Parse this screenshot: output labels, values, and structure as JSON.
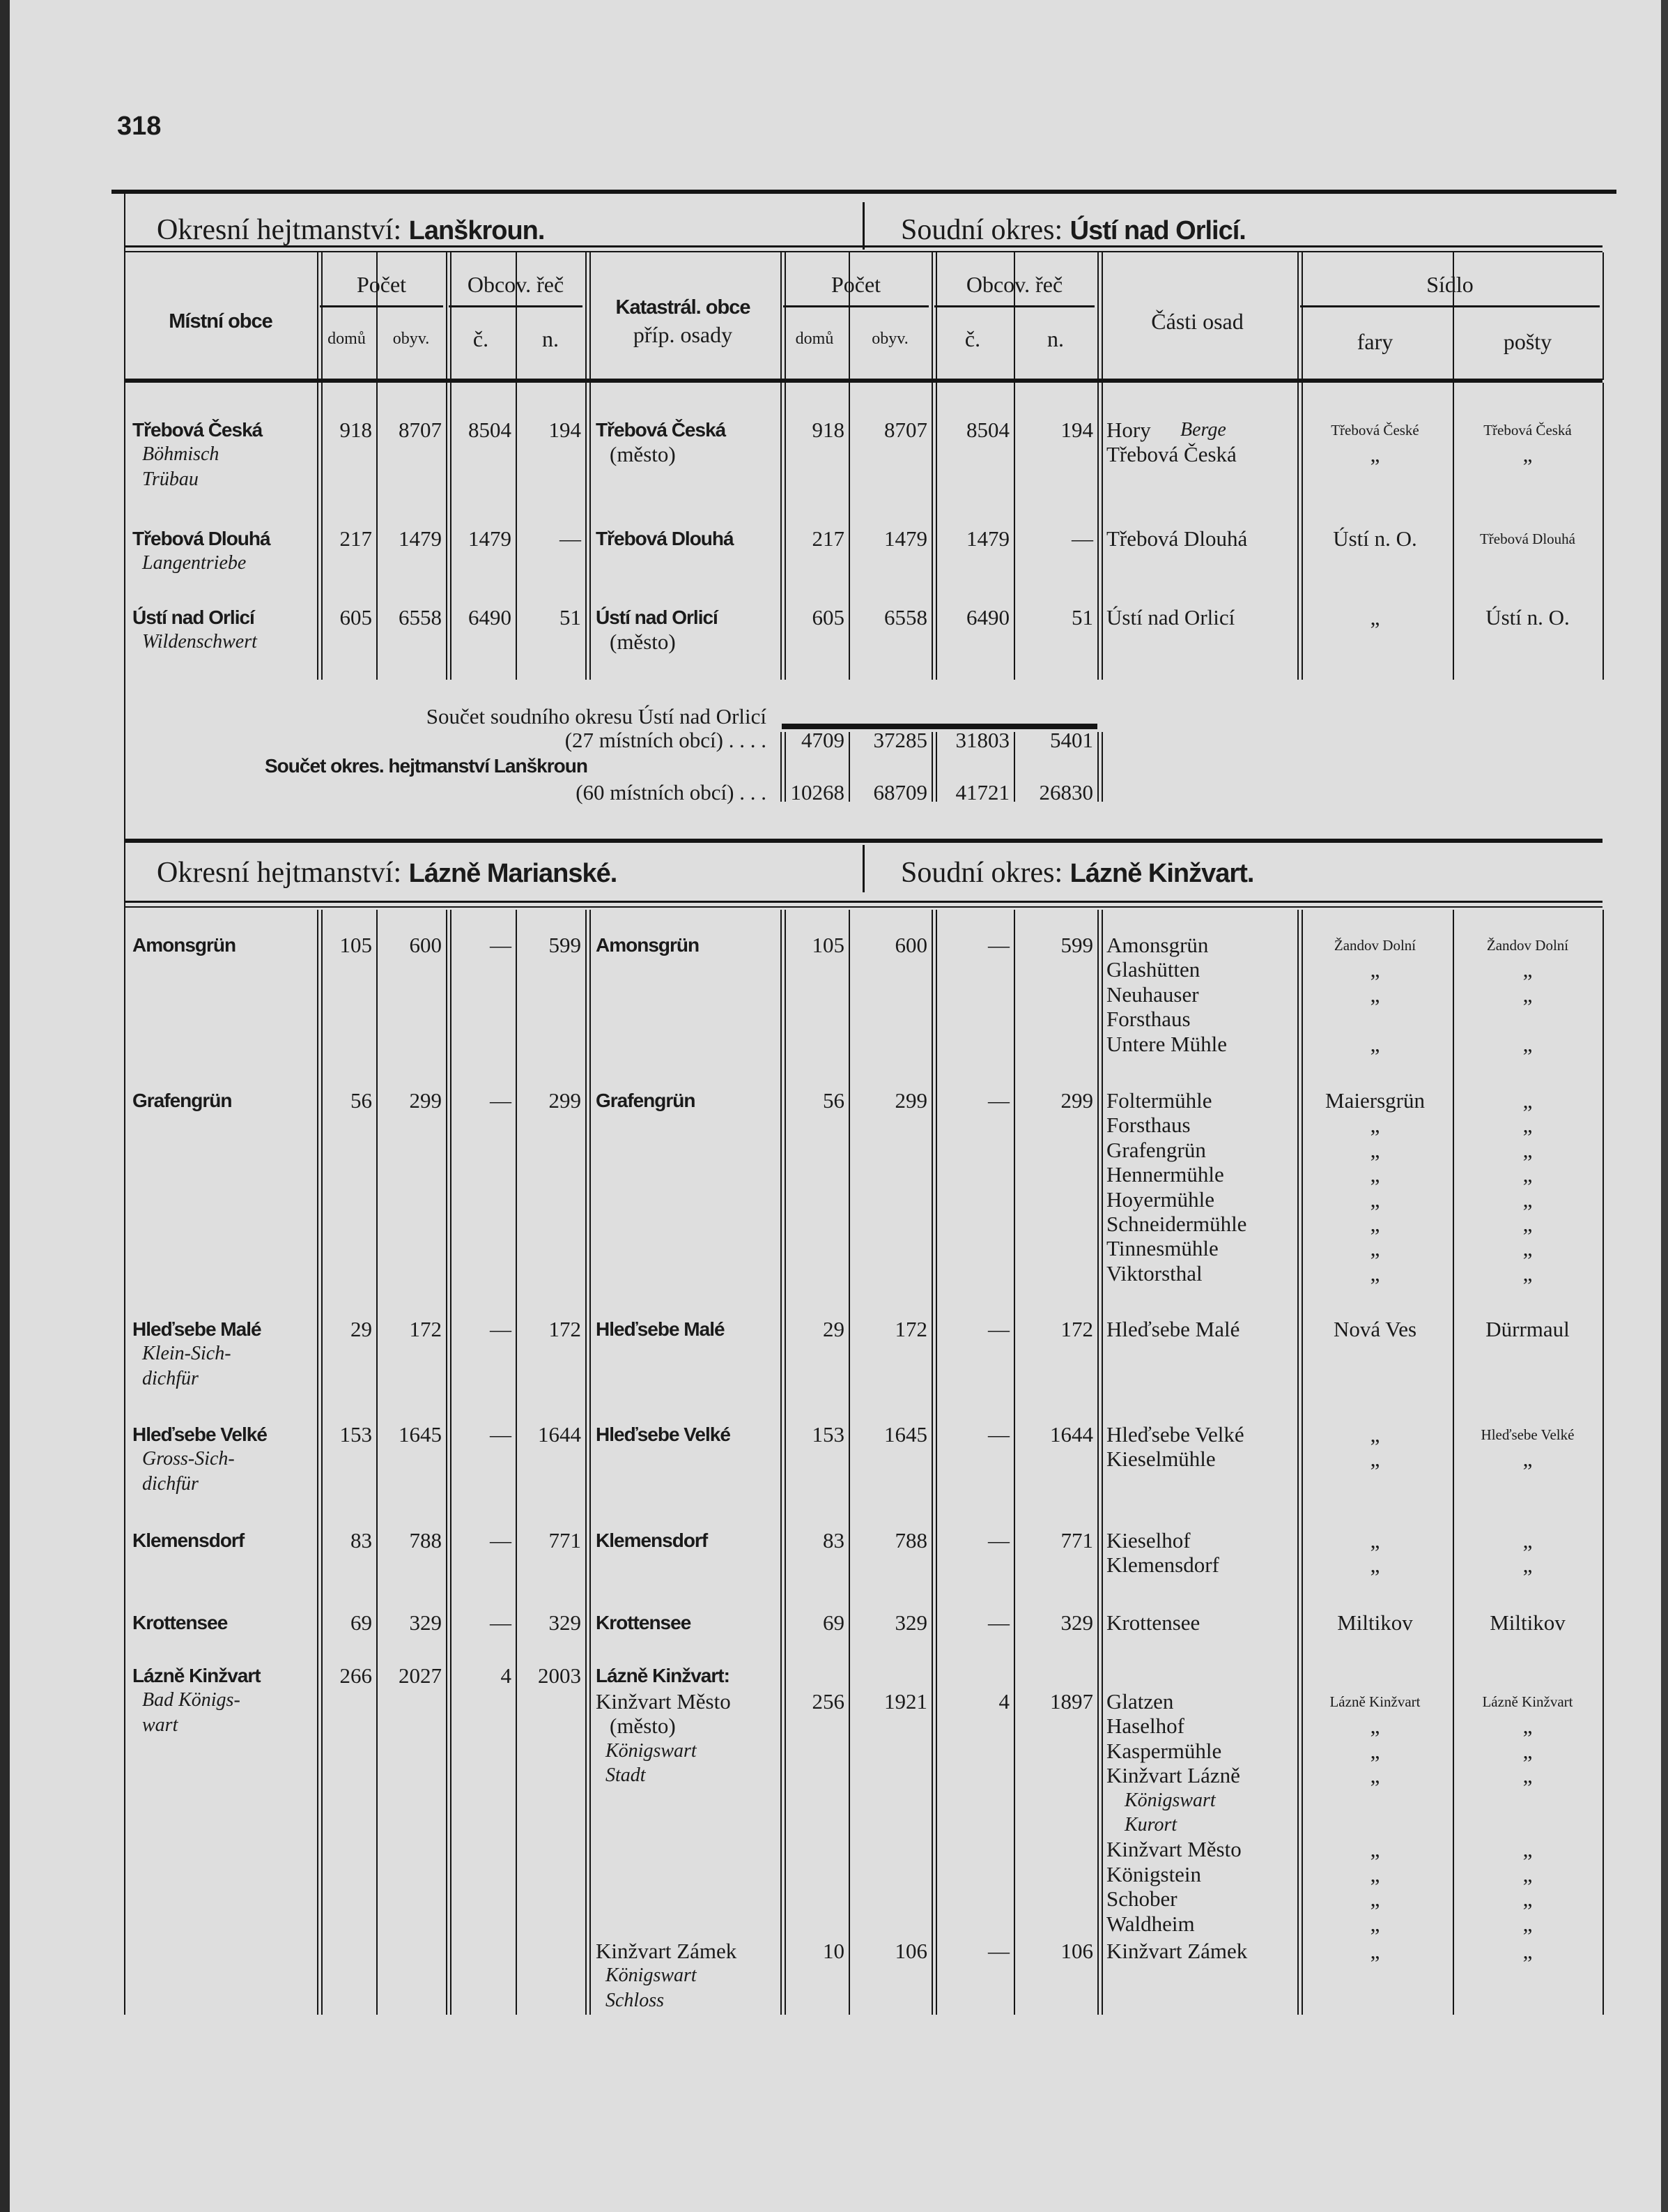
{
  "page_number": "318",
  "sections": [
    {
      "district_label": "Okresní hejtmanství:",
      "district_name": "Lanškroun.",
      "court_label": "Soudní okres:",
      "court_name": "Ústí nad Orlicí."
    },
    {
      "district_label": "Okresní hejtmanství:",
      "district_name": "Lázně Marianské.",
      "court_label": "Soudní okres:",
      "court_name": "Lázně Kinžvart."
    }
  ],
  "headers": {
    "local": "Místní obce",
    "count": "Počet",
    "language": "Obcov. řeč",
    "houses": "domů",
    "inhabitants": "obyv.",
    "czech": "č.",
    "german": "n.",
    "cadastral_1": "Katastrál. obce",
    "cadastral_2": "příp. osady",
    "parts": "Části osad",
    "seat": "Sídlo",
    "parish": "fary",
    "post": "pošty"
  },
  "rows": [
    {
      "local": "Třebová Česká",
      "local_de": [
        "Böhmisch",
        "Trübau"
      ],
      "nums": [
        "918",
        "8707",
        "8504",
        "194"
      ],
      "kat": [
        "Třebová Česká",
        "(město)"
      ],
      "kat_de": [],
      "nums2": [
        "918",
        "8707",
        "8504",
        "194"
      ],
      "parts": [
        {
          "text": "Hory",
          "de": "Berge"
        },
        {
          "text": "Třebová Česká"
        }
      ],
      "fary": [
        "Třebová České",
        "„"
      ],
      "posty": [
        "Třebová Česká",
        "„"
      ]
    },
    {
      "local": "Třebová Dlouhá",
      "local_de": [
        "Langentriebe"
      ],
      "nums": [
        "217",
        "1479",
        "1479",
        "—"
      ],
      "kat": [
        "Třebová Dlouhá"
      ],
      "kat_de": [],
      "nums2": [
        "217",
        "1479",
        "1479",
        "—"
      ],
      "parts": [
        {
          "text": "Třebová Dlouhá"
        }
      ],
      "fary": [
        "Ústí n. O."
      ],
      "posty": [
        "Třebová Dlouhá"
      ]
    },
    {
      "local": "Ústí nad Orlicí",
      "local_de": [
        "Wildenschwert"
      ],
      "nums": [
        "605",
        "6558",
        "6490",
        "51"
      ],
      "kat": [
        "Ústí nad Orlicí",
        "(město)"
      ],
      "kat_de": [],
      "nums2": [
        "605",
        "6558",
        "6490",
        "51"
      ],
      "parts": [
        {
          "text": "Ústí nad Orlicí"
        }
      ],
      "fary": [
        "„"
      ],
      "posty": [
        "Ústí n. O."
      ]
    },
    {
      "local": "Amonsgrün",
      "local_de": [],
      "nums": [
        "105",
        "600",
        "—",
        "599"
      ],
      "kat": [
        "Amonsgrün"
      ],
      "kat_de": [],
      "nums2": [
        "105",
        "600",
        "—",
        "599"
      ],
      "parts": [
        {
          "text": "Amonsgrün"
        },
        {
          "text": "Glashütten"
        },
        {
          "text": "Neuhauser"
        },
        {
          "text": "  Forsthaus"
        },
        {
          "text": "Untere Mühle"
        }
      ],
      "fary": [
        "Žandov Dolní",
        "„",
        "„",
        "",
        "„"
      ],
      "posty": [
        "Žandov Dolní",
        "„",
        "„",
        "",
        "„"
      ]
    },
    {
      "local": "Grafengrün",
      "local_de": [],
      "nums": [
        "56",
        "299",
        "—",
        "299"
      ],
      "kat": [
        "Grafengrün"
      ],
      "kat_de": [],
      "nums2": [
        "56",
        "299",
        "—",
        "299"
      ],
      "parts": [
        {
          "text": "Foltermühle"
        },
        {
          "text": "Forsthaus"
        },
        {
          "text": "Grafengrün"
        },
        {
          "text": "Hennermühle"
        },
        {
          "text": "Hoyermühle"
        },
        {
          "text": "Schneidermühle"
        },
        {
          "text": "Tinnesmühle"
        },
        {
          "text": "Viktorsthal"
        }
      ],
      "fary": [
        "Maiersgrün",
        "„",
        "„",
        "„",
        "„",
        "„",
        "„",
        "„"
      ],
      "posty": [
        "„",
        "„",
        "„",
        "„",
        "„",
        "„",
        "„",
        "„"
      ]
    },
    {
      "local": "Hleďsebe Malé",
      "local_de": [
        "Klein-Sich-",
        "dichfür"
      ],
      "nums": [
        "29",
        "172",
        "—",
        "172"
      ],
      "kat": [
        "Hleďsebe Malé"
      ],
      "kat_de": [],
      "nums2": [
        "29",
        "172",
        "—",
        "172"
      ],
      "parts": [
        {
          "text": "Hleďsebe Malé"
        }
      ],
      "fary": [
        "Nová Ves"
      ],
      "posty": [
        "Dürrmaul"
      ]
    },
    {
      "local": "Hleďsebe Velké",
      "local_de": [
        "Gross-Sich-",
        "dichfür"
      ],
      "nums": [
        "153",
        "1645",
        "—",
        "1644"
      ],
      "kat": [
        "Hleďsebe Velké"
      ],
      "kat_de": [],
      "nums2": [
        "153",
        "1645",
        "—",
        "1644"
      ],
      "parts": [
        {
          "text": "Hleďsebe Velké"
        },
        {
          "text": "Kieselmühle"
        }
      ],
      "fary": [
        "„",
        "„"
      ],
      "posty": [
        "Hleďsebe Velké",
        "„"
      ]
    },
    {
      "local": "Klemensdorf",
      "local_de": [],
      "nums": [
        "83",
        "788",
        "—",
        "771"
      ],
      "kat": [
        "Klemensdorf"
      ],
      "kat_de": [],
      "nums2": [
        "83",
        "788",
        "—",
        "771"
      ],
      "parts": [
        {
          "text": "Kieselhof"
        },
        {
          "text": "Klemensdorf"
        }
      ],
      "fary": [
        "„",
        "„"
      ],
      "posty": [
        "„",
        "„"
      ]
    },
    {
      "local": "Krottensee",
      "local_de": [],
      "nums": [
        "69",
        "329",
        "—",
        "329"
      ],
      "kat": [
        "Krottensee"
      ],
      "kat_de": [],
      "nums2": [
        "69",
        "329",
        "—",
        "329"
      ],
      "parts": [
        {
          "text": "Krottensee"
        }
      ],
      "fary": [
        "Miltikov"
      ],
      "posty": [
        "Miltikov"
      ]
    },
    {
      "local": "Lázně Kinžvart",
      "local_de": [
        "Bad Königs-",
        "wart"
      ],
      "nums": [
        "266",
        "2027",
        "4",
        "2003"
      ],
      "kat": [
        "Lázně Kinžvart:"
      ],
      "kat_de": [],
      "nums2": [],
      "parts": [],
      "fary": [],
      "posty": []
    },
    {
      "local": "",
      "local_de": [],
      "nums": [],
      "kat": [
        "Kinžvart Město",
        "(město)"
      ],
      "kat_de": [
        "Königswart",
        "Stadt"
      ],
      "nums2": [
        "256",
        "1921",
        "4",
        "1897"
      ],
      "parts": [
        {
          "text": "Glatzen"
        },
        {
          "text": "Haselhof"
        },
        {
          "text": "Kaspermühle"
        },
        {
          "text": "Kinžvart Lázně"
        },
        {
          "text": "",
          "de": "Königswart"
        },
        {
          "text": "",
          "de": "Kurort"
        },
        {
          "text": "Kinžvart Město"
        },
        {
          "text": "Königstein"
        },
        {
          "text": "Schober"
        },
        {
          "text": "Waldheim"
        }
      ],
      "fary": [
        "Lázně Kinžvart",
        "„",
        "„",
        "„",
        "",
        "",
        "„",
        "„",
        "„",
        "„"
      ],
      "posty": [
        "Lázně Kinžvart",
        "„",
        "„",
        "„",
        "",
        "",
        "„",
        "„",
        "„",
        "„"
      ]
    },
    {
      "local": "",
      "local_de": [],
      "nums": [],
      "kat": [
        "Kinžvart Zámek"
      ],
      "kat_de": [
        "Königswart",
        "Schloss"
      ],
      "nums2": [
        "10",
        "106",
        "—",
        "106"
      ],
      "parts": [
        {
          "text": "Kinžvart Zámek"
        }
      ],
      "fary": [
        "„"
      ],
      "posty": [
        "„"
      ]
    }
  ],
  "totals": [
    {
      "label_1": "Součet soudního okresu Ústí nad Orlicí",
      "label_2": "(27 místních obcí) . . . .",
      "values": [
        "4709",
        "37285",
        "31803",
        "5401"
      ]
    },
    {
      "label_1": "Součet okres. hejtmanství Lanškroun",
      "label_2": "(60 místních obcí) . . .",
      "values": [
        "10268",
        "68709",
        "41721",
        "26830"
      ]
    }
  ]
}
